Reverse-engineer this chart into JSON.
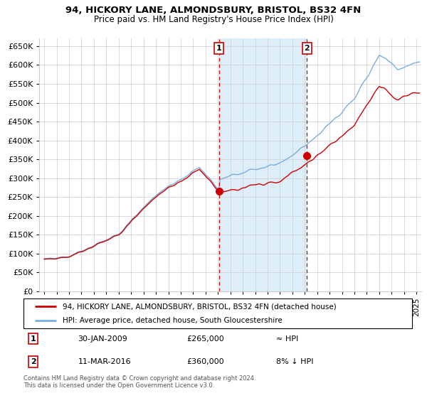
{
  "title": "94, HICKORY LANE, ALMONDSBURY, BRISTOL, BS32 4FN",
  "subtitle": "Price paid vs. HM Land Registry's House Price Index (HPI)",
  "legend_label_red": "94, HICKORY LANE, ALMONDSBURY, BRISTOL, BS32 4FN (detached house)",
  "legend_label_blue": "HPI: Average price, detached house, South Gloucestershire",
  "purchase1_date": "30-JAN-2009",
  "purchase1_price": 265000,
  "purchase1_label": "1",
  "purchase1_note": "≈ HPI",
  "purchase2_date": "11-MAR-2016",
  "purchase2_price": 360000,
  "purchase2_label": "2",
  "purchase2_note": "8% ↓ HPI",
  "footer": "Contains HM Land Registry data © Crown copyright and database right 2024.\nThis data is licensed under the Open Government Licence v3.0.",
  "red_color": "#cc0000",
  "blue_color": "#7aade0",
  "shade_color": "#ddeef8",
  "grid_color": "#cccccc",
  "background_color": "#ffffff",
  "ylim": [
    0,
    670000
  ],
  "yticks": [
    0,
    50000,
    100000,
    150000,
    200000,
    250000,
    300000,
    350000,
    400000,
    450000,
    500000,
    550000,
    600000,
    650000
  ],
  "xlim_start": 1994.6,
  "xlim_end": 2025.4
}
